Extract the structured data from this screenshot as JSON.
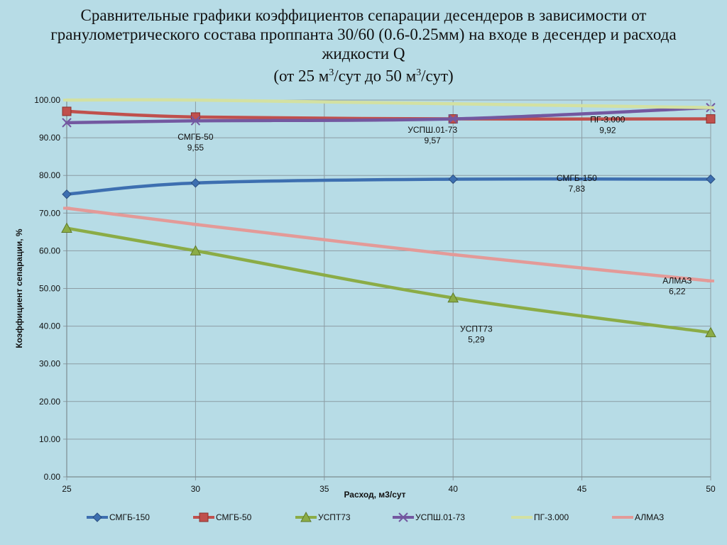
{
  "title": {
    "line1": "Сравнительные графики коэффициентов сепарации десендеров  в зависимости от",
    "line2": "гранулометрического  состава проппанта 30/60 (0.6-0.25мм)  на входе в десендер и расхода",
    "line3": "жидкости Q",
    "line4_prefix": "(от 25 м",
    "sup1": "3",
    "line4_mid": "/сут до 50 м",
    "sup2": "3",
    "line4_suffix": "/сут)"
  },
  "chart_data": {
    "type": "line",
    "xlabel": "Расход, м3/сут",
    "ylabel": "Коэффициент сепарации, %",
    "xlim": [
      25,
      50
    ],
    "ylim": [
      0,
      100
    ],
    "x_ticks": [
      25,
      30,
      35,
      40,
      45,
      50
    ],
    "y_ticks": [
      "0.00",
      "10.00",
      "20.00",
      "30.00",
      "40.00",
      "50.00",
      "60.00",
      "70.00",
      "80.00",
      "90.00",
      "100.00"
    ],
    "grid": true,
    "legend_position": "bottom",
    "x": [
      25,
      30,
      40,
      50
    ],
    "series": [
      {
        "name": "СМГБ-150",
        "color": "#3d6fb0",
        "marker": "diamond",
        "values": [
          75,
          78,
          79,
          79
        ]
      },
      {
        "name": "СМГБ-50",
        "color": "#c0504d",
        "marker": "square",
        "values": [
          97,
          95.5,
          95,
          95
        ]
      },
      {
        "name": "УСПТ73",
        "color": "#8bac46",
        "marker": "triangle",
        "values": [
          66,
          60,
          47.5,
          38.3
        ]
      },
      {
        "name": "УСПШ.01-73",
        "color": "#7358a0",
        "marker": "x",
        "values": [
          94,
          94.5,
          95,
          98
        ]
      },
      {
        "name": "ПГ-3.000",
        "color": "#d3e1a2",
        "marker": "dash",
        "values": [
          100,
          100,
          99,
          98
        ]
      },
      {
        "name": "АЛМАЗ",
        "color": "#e39a98",
        "marker": "dash",
        "values": [
          71.3,
          67,
          59,
          52
        ]
      }
    ],
    "annotations": [
      {
        "name": "СМГБ-50",
        "value": "9,55",
        "x": 30,
        "y": 89.5
      },
      {
        "name": "УСПШ.01-73",
        "value": "9,57",
        "x": 39.2,
        "y": 91.3
      },
      {
        "name": "ПГ-3.000",
        "value": "9,92",
        "x": 46,
        "y": 94.1
      },
      {
        "name": "СМГБ-150",
        "value": "7,83",
        "x": 44.8,
        "y": 78.5
      },
      {
        "name": "АЛМАЗ",
        "value": "6,22",
        "x": 48.7,
        "y": 51.3
      },
      {
        "name": "УСПТ73",
        "value": "5,29",
        "x": 40.9,
        "y": 38.5
      }
    ]
  }
}
